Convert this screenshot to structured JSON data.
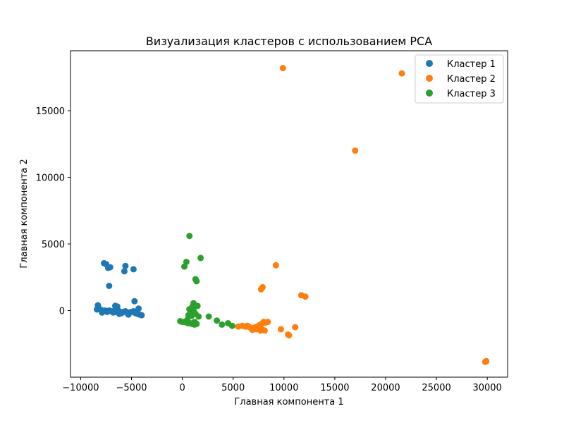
{
  "chart_data": {
    "type": "scatter",
    "title": "Визуализация кластеров с использованием PCA",
    "xlabel": "Главная компонента 1",
    "ylabel": "Главная компонента 2",
    "xlim": [
      -11000,
      32000
    ],
    "ylim": [
      -5000,
      19500
    ],
    "xticks": [
      -10000,
      -5000,
      0,
      5000,
      10000,
      15000,
      20000,
      25000,
      30000
    ],
    "yticks": [
      0,
      5000,
      10000,
      15000
    ],
    "legend_position": "top-right",
    "series": [
      {
        "name": "Кластер 1",
        "color": "#1f77b4",
        "points": [
          [
            -7700,
            3550
          ],
          [
            -7500,
            3480
          ],
          [
            -7300,
            3200
          ],
          [
            -7100,
            3250
          ],
          [
            -5600,
            3350
          ],
          [
            -4800,
            3100
          ],
          [
            -5700,
            2950
          ],
          [
            -7200,
            1850
          ],
          [
            -4700,
            700
          ],
          [
            -4300,
            150
          ],
          [
            -6600,
            350
          ],
          [
            -6400,
            300
          ],
          [
            -8300,
            400
          ],
          [
            -8400,
            80
          ],
          [
            -8200,
            150
          ],
          [
            -8000,
            50
          ],
          [
            -7800,
            -50
          ],
          [
            -7600,
            0
          ],
          [
            -7400,
            -100
          ],
          [
            -7200,
            0
          ],
          [
            -7000,
            -50
          ],
          [
            -6800,
            -150
          ],
          [
            -6600,
            -100
          ],
          [
            -6400,
            0
          ],
          [
            -6200,
            -50
          ],
          [
            -6000,
            -200
          ],
          [
            -5800,
            -100
          ],
          [
            -5600,
            -50
          ],
          [
            -5400,
            -200
          ],
          [
            -5200,
            -150
          ],
          [
            -5000,
            -100
          ],
          [
            -4800,
            -50
          ],
          [
            -4600,
            -200
          ],
          [
            -4400,
            -250
          ],
          [
            -4200,
            -300
          ],
          [
            -4000,
            -350
          ],
          [
            -6200,
            -250
          ],
          [
            -7900,
            -150
          ],
          [
            -5300,
            -300
          ],
          [
            -6900,
            -50
          ]
        ]
      },
      {
        "name": "Кластер 2",
        "color": "#ff7f0e",
        "points": [
          [
            9900,
            18200
          ],
          [
            21600,
            17800
          ],
          [
            17000,
            12000
          ],
          [
            9200,
            3400
          ],
          [
            7900,
            1750
          ],
          [
            7750,
            1600
          ],
          [
            11700,
            1150
          ],
          [
            12100,
            1050
          ],
          [
            29800,
            -3850
          ],
          [
            29900,
            -3800
          ],
          [
            10400,
            -1800
          ],
          [
            10500,
            -1850
          ],
          [
            9700,
            -1400
          ],
          [
            11100,
            -1250
          ],
          [
            8400,
            -850
          ],
          [
            8200,
            -900
          ],
          [
            8000,
            -850
          ],
          [
            7800,
            -1000
          ],
          [
            7600,
            -1100
          ],
          [
            7400,
            -1200
          ],
          [
            7200,
            -1250
          ],
          [
            7000,
            -1300
          ],
          [
            6800,
            -1350
          ],
          [
            6600,
            -1250
          ],
          [
            6400,
            -1150
          ],
          [
            6200,
            -1200
          ],
          [
            5900,
            -1150
          ],
          [
            5500,
            -1200
          ],
          [
            7700,
            -1500
          ],
          [
            7900,
            -1450
          ],
          [
            8100,
            -1500
          ],
          [
            7300,
            -1400
          ],
          [
            6900,
            -1450
          ]
        ]
      },
      {
        "name": "Кластер 3",
        "color": "#2ca02c",
        "points": [
          [
            700,
            5600
          ],
          [
            1800,
            3950
          ],
          [
            400,
            3650
          ],
          [
            200,
            3300
          ],
          [
            1300,
            2350
          ],
          [
            1400,
            2200
          ],
          [
            1100,
            550
          ],
          [
            1500,
            350
          ],
          [
            1000,
            300
          ],
          [
            800,
            0
          ],
          [
            700,
            100
          ],
          [
            1100,
            0
          ],
          [
            1000,
            -150
          ],
          [
            1300,
            -250
          ],
          [
            1600,
            -450
          ],
          [
            600,
            -350
          ],
          [
            900,
            -400
          ],
          [
            -200,
            -800
          ],
          [
            0,
            -850
          ],
          [
            200,
            -850
          ],
          [
            400,
            -900
          ],
          [
            600,
            -950
          ],
          [
            800,
            -950
          ],
          [
            1000,
            -1000
          ],
          [
            1200,
            -1050
          ],
          [
            1400,
            -1000
          ],
          [
            1200,
            -850
          ],
          [
            500,
            -700
          ],
          [
            2600,
            -450
          ],
          [
            3400,
            -750
          ],
          [
            3900,
            -1050
          ],
          [
            4500,
            -950
          ],
          [
            4900,
            -1150
          ]
        ]
      }
    ]
  }
}
